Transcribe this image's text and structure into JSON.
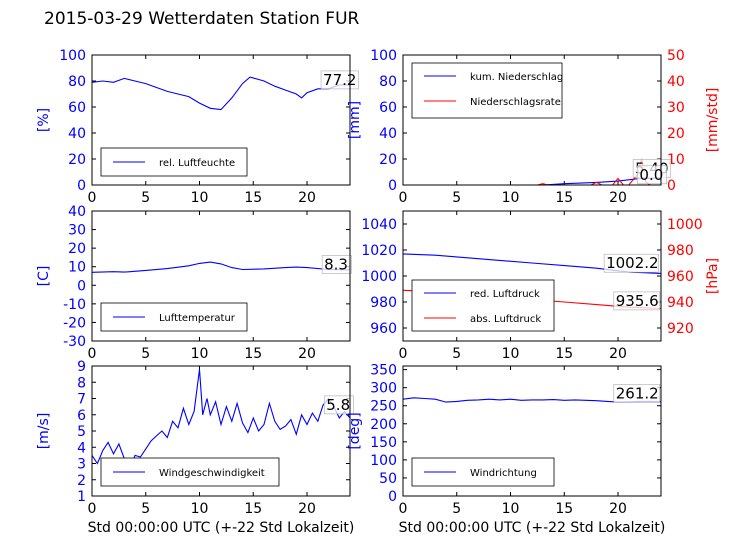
{
  "figure": {
    "title": "2015-03-29 Wetterdaten Station FUR"
  },
  "chart_data": [
    {
      "id": "humidity",
      "type": "line",
      "xlim": [
        0,
        24
      ],
      "x_ticks": [
        0,
        5,
        10,
        15,
        20
      ],
      "ylim": [
        0,
        100
      ],
      "y_ticks": [
        0,
        20,
        40,
        60,
        80,
        100
      ],
      "ylabel": "[%]",
      "label_color": "#0000ff",
      "legend": {
        "position": "lower-left",
        "entries": [
          {
            "label": "rel. Luftfeuchte",
            "color": "#0000ff"
          }
        ]
      },
      "series": [
        {
          "name": "rel. Luftfeuchte",
          "color": "#0000ff",
          "points": [
            [
              0,
              79
            ],
            [
              1,
              80
            ],
            [
              2,
              79
            ],
            [
              3,
              82
            ],
            [
              4,
              80
            ],
            [
              5,
              78
            ],
            [
              6,
              75
            ],
            [
              7,
              72
            ],
            [
              8,
              70
            ],
            [
              9,
              68
            ],
            [
              10,
              63
            ],
            [
              11,
              59
            ],
            [
              12,
              58
            ],
            [
              13,
              67
            ],
            [
              14,
              78
            ],
            [
              14.7,
              83
            ],
            [
              16,
              80
            ],
            [
              17,
              76
            ],
            [
              18,
              73
            ],
            [
              19,
              70
            ],
            [
              19.5,
              67
            ],
            [
              20,
              71
            ],
            [
              21,
              74
            ],
            [
              22,
              74
            ],
            [
              23,
              77
            ],
            [
              24,
              77
            ]
          ]
        }
      ],
      "annotations": [
        {
          "text": "77.2",
          "x": 21.4,
          "y": 77
        }
      ]
    },
    {
      "id": "precipitation",
      "type": "line",
      "xlim": [
        0,
        24
      ],
      "x_ticks": [
        0,
        5,
        10,
        15,
        20
      ],
      "ylim": [
        0,
        100
      ],
      "y_ticks": [
        0,
        20,
        40,
        60,
        80,
        100
      ],
      "ylabel": "[mm]",
      "label_color": "#0000ff",
      "y2lim": [
        0,
        50
      ],
      "y2_ticks": [
        0,
        10,
        20,
        30,
        40,
        50
      ],
      "y2label": "[mm/std]",
      "label2_color": "#ff0000",
      "legend": {
        "position": "upper-left",
        "entries": [
          {
            "label": "kum. Niederschlag",
            "color": "#0000ff"
          },
          {
            "label": "Niederschlagsrate",
            "color": "#ff0000"
          }
        ]
      },
      "series": [
        {
          "name": "kum. Niederschlag",
          "color": "#0000ff",
          "axis": "left",
          "points": [
            [
              0,
              0
            ],
            [
              13,
              0
            ],
            [
              15,
              1
            ],
            [
              18,
              2
            ],
            [
              20,
              3
            ],
            [
              22,
              5
            ],
            [
              24,
              5.4
            ]
          ]
        },
        {
          "name": "Niederschlagsrate",
          "color": "#ff0000",
          "axis": "right",
          "points": [
            [
              0,
              0
            ],
            [
              12.5,
              0
            ],
            [
              13,
              0.5
            ],
            [
              13.5,
              0
            ],
            [
              17.5,
              0
            ],
            [
              18,
              1
            ],
            [
              18.5,
              0
            ],
            [
              19.5,
              0
            ],
            [
              20,
              2.5
            ],
            [
              20.5,
              0
            ],
            [
              21,
              0
            ],
            [
              21.8,
              4
            ],
            [
              22.2,
              10
            ],
            [
              22.6,
              1
            ],
            [
              23,
              0
            ],
            [
              24,
              0
            ]
          ]
        }
      ],
      "annotations": [
        {
          "text": "5.40",
          "x": 21.5,
          "y": 9
        },
        {
          "text": "0.0",
          "x": 21.9,
          "y": 4
        }
      ]
    },
    {
      "id": "temperature",
      "type": "line",
      "xlim": [
        0,
        24
      ],
      "x_ticks": [
        0,
        5,
        10,
        15,
        20
      ],
      "ylim": [
        -30,
        40
      ],
      "y_ticks": [
        -30,
        -20,
        -10,
        0,
        10,
        20,
        30,
        40
      ],
      "ylabel": "[C]",
      "label_color": "#0000ff",
      "legend": {
        "position": "lower-left",
        "entries": [
          {
            "label": "Lufttemperatur",
            "color": "#0000ff"
          }
        ]
      },
      "series": [
        {
          "name": "Lufttemperatur",
          "color": "#0000ff",
          "points": [
            [
              0,
              7
            ],
            [
              2,
              7.3
            ],
            [
              3,
              7.1
            ],
            [
              5,
              8
            ],
            [
              7,
              9
            ],
            [
              9,
              10.5
            ],
            [
              10,
              11.8
            ],
            [
              11,
              12.5
            ],
            [
              12,
              11.5
            ],
            [
              13,
              9.5
            ],
            [
              14,
              8.5
            ],
            [
              16,
              8.8
            ],
            [
              18,
              9.5
            ],
            [
              19,
              9.8
            ],
            [
              20,
              9.5
            ],
            [
              22,
              8.5
            ],
            [
              24,
              8.3
            ]
          ]
        }
      ],
      "annotations": [
        {
          "text": "8.3",
          "x": 21.5,
          "y": 8.5
        }
      ]
    },
    {
      "id": "pressure",
      "type": "line",
      "xlim": [
        0,
        24
      ],
      "x_ticks": [
        0,
        5,
        10,
        15,
        20
      ],
      "ylim": [
        950,
        1050
      ],
      "y_ticks": [
        960,
        980,
        1000,
        1020,
        1040
      ],
      "y2lim": [
        910,
        1010
      ],
      "y2_ticks": [
        920,
        940,
        960,
        980,
        1000
      ],
      "y2label": "[hPa]",
      "label2_color": "#ff0000",
      "legend": {
        "position": "lower-left",
        "entries": [
          {
            "label": "red. Luftdruck",
            "color": "#0000ff"
          },
          {
            "label": "abs. Luftdruck",
            "color": "#ff0000"
          }
        ]
      },
      "series": [
        {
          "name": "red. Luftdruck",
          "color": "#0000ff",
          "axis": "left",
          "points": [
            [
              0,
              1017
            ],
            [
              3,
              1016
            ],
            [
              6,
              1014
            ],
            [
              9,
              1012
            ],
            [
              12,
              1010
            ],
            [
              15,
              1008
            ],
            [
              18,
              1006
            ],
            [
              21,
              1003
            ],
            [
              24,
              1002
            ]
          ]
        },
        {
          "name": "abs. Luftdruck",
          "color": "#ff0000",
          "axis": "right",
          "points": [
            [
              0,
              949
            ],
            [
              3,
              948
            ],
            [
              6,
              946
            ],
            [
              9,
              944
            ],
            [
              12,
              942
            ],
            [
              15,
              940
            ],
            [
              18,
              938
            ],
            [
              21,
              936
            ],
            [
              24,
              935
            ]
          ]
        }
      ],
      "annotations": [
        {
          "text": "1002.2",
          "x": 18.8,
          "y": 1006
        },
        {
          "text": "935.6",
          "x": 19.7,
          "y": 977
        }
      ]
    },
    {
      "id": "wind-speed",
      "type": "line",
      "xlim": [
        0,
        24
      ],
      "x_ticks": [
        0,
        5,
        10,
        15,
        20
      ],
      "ylim": [
        1,
        9
      ],
      "y_ticks": [
        1,
        2,
        3,
        4,
        5,
        6,
        7,
        8,
        9
      ],
      "ylabel": "[m/s]",
      "label_color": "#0000ff",
      "xlabel": "Std 00:00:00 UTC (+-22 Std Lokalzeit)",
      "legend": {
        "position": "lower-left",
        "entries": [
          {
            "label": "Windgeschwindigkeit",
            "color": "#0000ff"
          }
        ]
      },
      "series": [
        {
          "name": "Windgeschwindigkeit",
          "color": "#0000ff",
          "points": [
            [
              0,
              3.5
            ],
            [
              0.5,
              3.0
            ],
            [
              1,
              3.8
            ],
            [
              1.5,
              4.3
            ],
            [
              2,
              3.6
            ],
            [
              2.5,
              4.2
            ],
            [
              3,
              3.3
            ],
            [
              3.5,
              2.6
            ],
            [
              4,
              3.5
            ],
            [
              4.5,
              3.4
            ],
            [
              5,
              3.9
            ],
            [
              5.5,
              4.4
            ],
            [
              6,
              4.7
            ],
            [
              6.5,
              5.0
            ],
            [
              7,
              4.6
            ],
            [
              7.5,
              5.6
            ],
            [
              8,
              5.2
            ],
            [
              8.5,
              6.4
            ],
            [
              9,
              5.4
            ],
            [
              9.5,
              6.2
            ],
            [
              10,
              8.8
            ],
            [
              10.3,
              6.0
            ],
            [
              10.7,
              7.0
            ],
            [
              11,
              6.0
            ],
            [
              11.5,
              6.8
            ],
            [
              12,
              5.4
            ],
            [
              12.5,
              6.5
            ],
            [
              13,
              5.6
            ],
            [
              13.5,
              6.7
            ],
            [
              14,
              5.5
            ],
            [
              14.5,
              4.9
            ],
            [
              15,
              5.8
            ],
            [
              15.5,
              5.0
            ],
            [
              16,
              5.4
            ],
            [
              16.5,
              6.7
            ],
            [
              17,
              5.6
            ],
            [
              17.5,
              5.1
            ],
            [
              18,
              5.3
            ],
            [
              18.5,
              5.7
            ],
            [
              19,
              4.8
            ],
            [
              19.5,
              6.0
            ],
            [
              20,
              5.4
            ],
            [
              20.5,
              6.1
            ],
            [
              21,
              5.6
            ],
            [
              21.5,
              6.6
            ],
            [
              22,
              7.0
            ],
            [
              22.5,
              6.5
            ],
            [
              23,
              5.8
            ],
            [
              23.5,
              6.2
            ],
            [
              24,
              5.8
            ]
          ]
        }
      ],
      "annotations": [
        {
          "text": "5.8",
          "x": 21.7,
          "y": 6.3
        }
      ]
    },
    {
      "id": "wind-direction",
      "type": "line",
      "xlim": [
        0,
        24
      ],
      "x_ticks": [
        0,
        5,
        10,
        15,
        20
      ],
      "ylim": [
        0,
        360
      ],
      "y_ticks": [
        0,
        50,
        100,
        150,
        200,
        250,
        300,
        350
      ],
      "ylabel": "[deg]",
      "label_color": "#0000ff",
      "xlabel": "Std 00:00:00 UTC (+-22 Std Lokalzeit)",
      "legend": {
        "position": "lower-left",
        "entries": [
          {
            "label": "Windrichtung",
            "color": "#0000ff"
          }
        ]
      },
      "series": [
        {
          "name": "Windrichtung",
          "color": "#0000ff",
          "points": [
            [
              0,
              268
            ],
            [
              1,
              272
            ],
            [
              2,
              270
            ],
            [
              3,
              268
            ],
            [
              4,
              260
            ],
            [
              5,
              262
            ],
            [
              6,
              265
            ],
            [
              7,
              266
            ],
            [
              8,
              268
            ],
            [
              9,
              266
            ],
            [
              10,
              268
            ],
            [
              11,
              265
            ],
            [
              12,
              266
            ],
            [
              13,
              266
            ],
            [
              14,
              267
            ],
            [
              15,
              265
            ],
            [
              16,
              266
            ],
            [
              17,
              265
            ],
            [
              18,
              264
            ],
            [
              19,
              262
            ],
            [
              20,
              260
            ],
            [
              21,
              261
            ],
            [
              22,
              262
            ],
            [
              23,
              262
            ],
            [
              24,
              261
            ]
          ]
        }
      ],
      "annotations": [
        {
          "text": "261.2",
          "x": 19.7,
          "y": 270
        }
      ]
    }
  ]
}
